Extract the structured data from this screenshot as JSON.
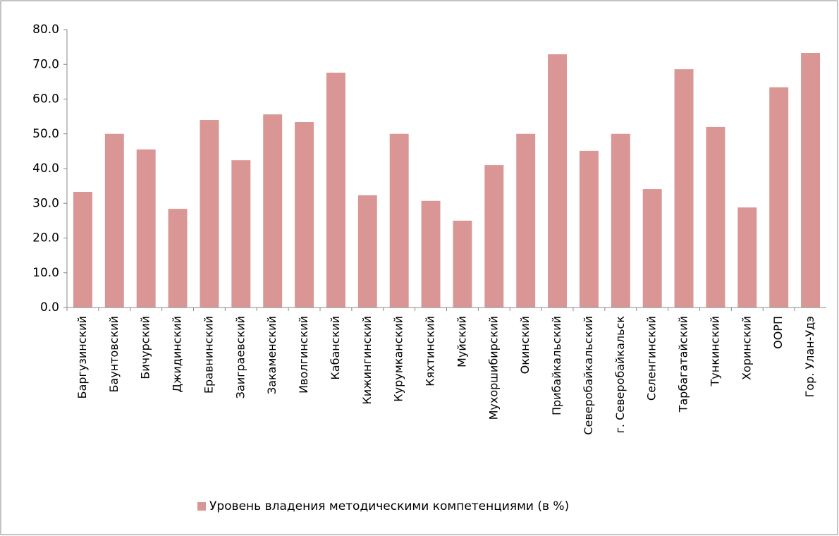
{
  "chart_data": {
    "type": "bar",
    "categories": [
      "Баргузинский",
      "Баунтовский",
      "Бичурский",
      "Джидинский",
      "Еравнинский",
      "Заиграевский",
      "Закаменский",
      "Иволгинский",
      "Кабанский",
      "Кижингинский",
      "Курумканский",
      "Кяхтинский",
      "Муйский",
      "Мухоршибирский",
      "Окинский",
      "Прибайкальский",
      "Северобайкальский",
      "г. Северобайкальск",
      "Селенгинский",
      "Тарбагатайский",
      "Тункинский",
      "Хоринский",
      "ООРП",
      "Гор. Улан-Удэ"
    ],
    "series": [
      {
        "name": "Уровень владения методическими компетенциями (в %)",
        "color": "#d99694",
        "values": [
          33.3,
          50.0,
          45.5,
          28.4,
          54.0,
          42.4,
          55.6,
          53.4,
          67.6,
          32.3,
          50.0,
          30.7,
          25.0,
          41.0,
          50.0,
          72.9,
          45.1,
          50.0,
          34.1,
          68.6,
          52.0,
          28.8,
          63.4,
          73.3
        ]
      }
    ],
    "ylim": [
      0,
      80
    ],
    "yticks": [
      {
        "value": 0,
        "label": "0.0"
      },
      {
        "value": 10,
        "label": "10.0"
      },
      {
        "value": 20,
        "label": "20.0"
      },
      {
        "value": 30,
        "label": "30.0"
      },
      {
        "value": 40,
        "label": "40.0"
      },
      {
        "value": 50,
        "label": "50.0"
      },
      {
        "value": 60,
        "label": "60.0"
      },
      {
        "value": 70,
        "label": "70.0"
      },
      {
        "value": 80,
        "label": "80.0"
      }
    ],
    "legend": "bottom"
  }
}
